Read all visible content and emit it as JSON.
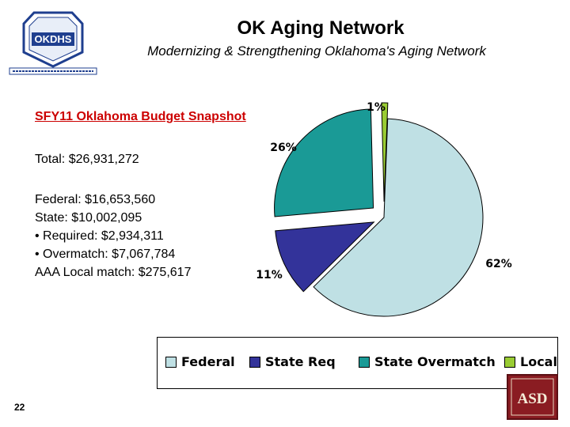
{
  "header": {
    "title": "OK Aging Network",
    "subtitle": "Modernizing & Strengthening Oklahoma's Aging Network",
    "logo_text": "OKDHS"
  },
  "left_panel": {
    "snapshot_heading": "SFY11 Oklahoma Budget Snapshot",
    "total": "Total:  $26,931,272",
    "federal": "Federal:  $16,653,560",
    "state": "State:  $10,002,095",
    "required": "•  Required:  $2,934,311",
    "overmatch": "•  Overmatch:  $7,067,784",
    "aaa_local": "AAA Local match:  $275,617"
  },
  "footer": {
    "page_number": "22",
    "logo_text": "ASD"
  },
  "colors": {
    "federal": "#bfe0e4",
    "state_req": "#33339a",
    "state_overmatch": "#1a9a96",
    "local": "#99cc33",
    "heading_red": "#cc0000"
  },
  "chart_data": {
    "type": "pie",
    "categories": [
      "Federal",
      "State Req",
      "State Overmatch",
      "Local"
    ],
    "values": [
      62,
      11,
      26,
      1
    ],
    "value_labels": [
      "62%",
      "11%",
      "26%",
      "1%"
    ],
    "legend_position": "bottom"
  }
}
